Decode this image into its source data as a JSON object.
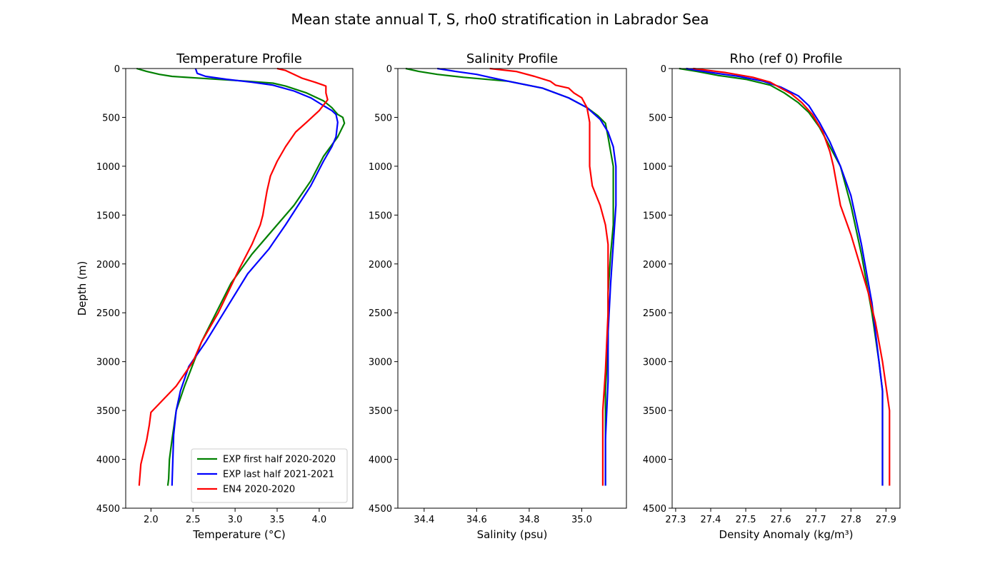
{
  "figure": {
    "suptitle": "Mean state annual T, S, rho0 stratification in Labrador Sea"
  },
  "series_colors": {
    "EXP first half 2020-2020": "#008000",
    "EXP last half 2021-2021": "#0000ff",
    "EN4 2020-2020": "#ff0000"
  },
  "legend": {
    "placement": "lower-right",
    "panel": 0,
    "entries": [
      "EXP first half 2020-2020",
      "EXP last half 2021-2021",
      "EN4 2020-2020"
    ]
  },
  "chart_data": [
    {
      "type": "line",
      "title": "Temperature Profile",
      "xlabel": "Temperature (°C)",
      "ylabel": "Depth (m)",
      "xlim": [
        1.7,
        4.4
      ],
      "ylim": [
        4500,
        0
      ],
      "xticks": [
        2.0,
        2.5,
        3.0,
        3.5,
        4.0
      ],
      "xtick_labels": [
        "2.0",
        "2.5",
        "3.0",
        "3.5",
        "4.0"
      ],
      "yticks": [
        0,
        500,
        1000,
        1500,
        2000,
        2500,
        3000,
        3500,
        4000,
        4500
      ],
      "ytick_labels": [
        "0",
        "500",
        "1000",
        "1500",
        "2000",
        "2500",
        "3000",
        "3500",
        "4000",
        "4500"
      ],
      "grid": false,
      "series": [
        {
          "name": "EXP first half 2020-2020",
          "x": [
            1.83,
            1.95,
            2.1,
            2.25,
            2.6,
            3.15,
            3.45,
            3.6,
            3.85,
            4.05,
            4.15,
            4.22,
            4.28,
            4.3,
            4.22,
            4.05,
            3.9,
            3.7,
            3.45,
            3.2,
            2.95,
            2.6,
            2.4,
            2.3,
            2.25,
            2.22,
            2.21,
            2.2
          ],
          "y": [
            0,
            30,
            60,
            80,
            100,
            130,
            150,
            180,
            250,
            330,
            400,
            470,
            500,
            560,
            700,
            900,
            1150,
            1400,
            1650,
            1900,
            2200,
            2800,
            3250,
            3500,
            3800,
            4000,
            4200,
            4270
          ]
        },
        {
          "name": "EXP last half 2021-2021",
          "x": [
            2.53,
            2.55,
            2.65,
            2.9,
            3.2,
            3.45,
            3.7,
            3.9,
            4.05,
            4.15,
            4.2,
            4.22,
            4.2,
            4.15,
            4.05,
            3.9,
            3.75,
            3.6,
            3.4,
            3.15,
            2.9,
            2.65,
            2.45,
            2.35,
            2.3,
            2.27,
            2.26,
            2.25
          ],
          "y": [
            0,
            50,
            80,
            110,
            140,
            170,
            230,
            300,
            380,
            430,
            470,
            550,
            700,
            800,
            950,
            1200,
            1400,
            1600,
            1850,
            2100,
            2450,
            2800,
            3050,
            3300,
            3500,
            3750,
            4000,
            4270
          ]
        },
        {
          "name": "EN4 2020-2020",
          "x": [
            3.5,
            3.6,
            3.7,
            3.8,
            3.95,
            4.05,
            4.08,
            4.08,
            4.1,
            4.0,
            3.85,
            3.72,
            3.6,
            3.5,
            3.42,
            3.38,
            3.35,
            3.33,
            3.3,
            3.2,
            3.05,
            2.8,
            2.6,
            2.5,
            2.3,
            2.0,
            1.98,
            1.95,
            1.88,
            1.86
          ],
          "y": [
            0,
            20,
            60,
            100,
            140,
            170,
            180,
            250,
            320,
            430,
            550,
            650,
            800,
            950,
            1100,
            1250,
            1400,
            1500,
            1600,
            1800,
            2050,
            2500,
            2800,
            3000,
            3250,
            3520,
            3650,
            3800,
            4050,
            4270
          ]
        }
      ]
    },
    {
      "type": "line",
      "title": "Salinity Profile",
      "xlabel": "Salinity (psu)",
      "ylabel": "",
      "xlim": [
        34.3,
        35.17
      ],
      "ylim": [
        4500,
        0
      ],
      "xticks": [
        34.4,
        34.6,
        34.8,
        35.0
      ],
      "xtick_labels": [
        "34.4",
        "34.6",
        "34.8",
        "35.0"
      ],
      "yticks": [
        0,
        500,
        1000,
        1500,
        2000,
        2500,
        3000,
        3500,
        4000,
        4500
      ],
      "ytick_labels": [
        "0",
        "500",
        "1000",
        "1500",
        "2000",
        "2500",
        "3000",
        "3500",
        "4000",
        "4500"
      ],
      "grid": false,
      "series": [
        {
          "name": "EXP first half 2020-2020",
          "x": [
            34.33,
            34.38,
            34.45,
            34.55,
            34.72,
            34.85,
            34.95,
            35.02,
            35.06,
            35.09,
            35.1,
            35.11,
            35.12,
            35.12,
            35.12,
            35.11,
            35.1,
            35.1,
            35.09,
            35.09,
            35.09
          ],
          "y": [
            0,
            30,
            60,
            90,
            130,
            200,
            300,
            400,
            480,
            560,
            700,
            850,
            1000,
            1300,
            1600,
            1900,
            2300,
            2800,
            3300,
            3800,
            4270
          ]
        },
        {
          "name": "EXP last half 2021-2021",
          "x": [
            34.45,
            34.52,
            34.6,
            34.65,
            34.72,
            34.85,
            34.95,
            35.02,
            35.07,
            35.1,
            35.12,
            35.13,
            35.13,
            35.12,
            35.11,
            35.1,
            35.1,
            35.09,
            35.09
          ],
          "y": [
            0,
            30,
            60,
            90,
            130,
            200,
            300,
            400,
            520,
            650,
            800,
            1000,
            1400,
            1800,
            2200,
            2700,
            3200,
            3800,
            4270
          ]
        },
        {
          "name": "EN4 2020-2020",
          "x": [
            34.65,
            34.75,
            34.82,
            34.88,
            34.9,
            34.95,
            34.97,
            35.0,
            35.02,
            35.03,
            35.03,
            35.03,
            35.04,
            35.07,
            35.09,
            35.1,
            35.1,
            35.09,
            35.08,
            35.08
          ],
          "y": [
            0,
            30,
            80,
            130,
            170,
            200,
            250,
            300,
            400,
            550,
            800,
            1000,
            1200,
            1400,
            1600,
            1800,
            2500,
            3100,
            3500,
            4270
          ]
        }
      ]
    },
    {
      "type": "line",
      "title": "Rho (ref 0) Profile",
      "xlabel": "Density Anomaly (kg/m³)",
      "ylabel": "",
      "xlim": [
        27.29,
        27.94
      ],
      "ylim": [
        4500,
        0
      ],
      "xticks": [
        27.3,
        27.4,
        27.5,
        27.6,
        27.7,
        27.8,
        27.9
      ],
      "xtick_labels": [
        "27.3",
        "27.4",
        "27.5",
        "27.6",
        "27.7",
        "27.8",
        "27.9"
      ],
      "yticks": [
        0,
        500,
        1000,
        1500,
        2000,
        2500,
        3000,
        3500,
        4000,
        4500
      ],
      "ytick_labels": [
        "0",
        "500",
        "1000",
        "1500",
        "2000",
        "2500",
        "3000",
        "3500",
        "4000",
        "4500"
      ],
      "grid": false,
      "series": [
        {
          "name": "EXP first half 2020-2020",
          "x": [
            27.31,
            27.36,
            27.42,
            27.5,
            27.57,
            27.61,
            27.65,
            27.68,
            27.71,
            27.74,
            27.77,
            27.8,
            27.83,
            27.86,
            27.88,
            27.89,
            27.89,
            27.89
          ],
          "y": [
            0,
            30,
            70,
            110,
            170,
            250,
            350,
            450,
            600,
            800,
            1000,
            1400,
            1900,
            2500,
            3000,
            3300,
            3800,
            4270
          ]
        },
        {
          "name": "EXP last half 2021-2021",
          "x": [
            27.33,
            27.4,
            27.48,
            27.55,
            27.6,
            27.65,
            27.68,
            27.71,
            27.74,
            27.77,
            27.8,
            27.83,
            27.86,
            27.88,
            27.89,
            27.89,
            27.89
          ],
          "y": [
            0,
            40,
            80,
            130,
            190,
            280,
            380,
            550,
            750,
            1000,
            1300,
            1800,
            2400,
            3000,
            3300,
            3800,
            4270
          ]
        },
        {
          "name": "EN4 2020-2020",
          "x": [
            27.35,
            27.44,
            27.52,
            27.57,
            27.6,
            27.63,
            27.66,
            27.69,
            27.72,
            27.74,
            27.75,
            27.76,
            27.77,
            27.8,
            27.85,
            27.87,
            27.89,
            27.91,
            27.91,
            27.91
          ],
          "y": [
            0,
            40,
            90,
            140,
            200,
            260,
            350,
            470,
            650,
            850,
            1000,
            1200,
            1400,
            1700,
            2300,
            2600,
            3000,
            3500,
            4000,
            4270
          ]
        }
      ]
    }
  ]
}
